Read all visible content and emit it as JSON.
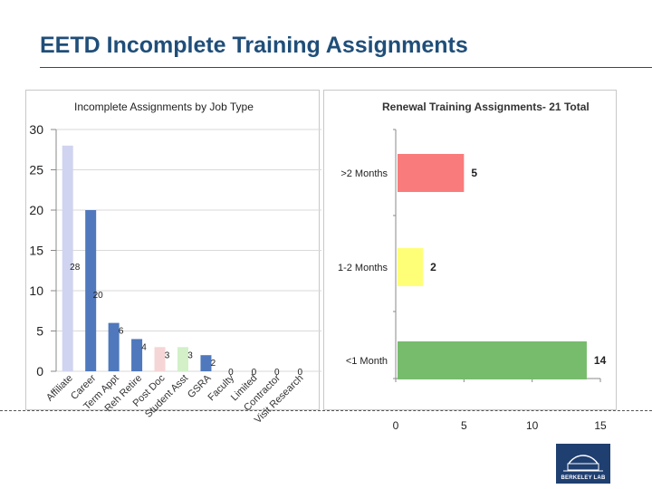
{
  "page": {
    "title": "EETD Incomplete Training Assignments"
  },
  "logo": {
    "text": "BERKELEY LAB",
    "color": "#1f3f70"
  },
  "chart_data": [
    {
      "type": "bar",
      "title": "Incomplete Assignments by Job Type",
      "ylim": [
        0,
        30
      ],
      "yticks": [
        0,
        5,
        10,
        15,
        20,
        25,
        30
      ],
      "grid": true,
      "legend": "none",
      "categories": [
        "Affiliate",
        "Career",
        "Term Appt",
        "Reh Retire",
        "Post Doc",
        "Student Asst",
        "GSRA",
        "Faculty",
        "Limited",
        "Contractor",
        "Visit Research"
      ],
      "values": [
        28,
        20,
        6,
        4,
        3,
        3,
        2,
        0,
        0,
        0,
        0
      ],
      "data_labels": [
        "28",
        "20",
        "6",
        "4",
        "3",
        "3",
        "2",
        "0",
        "0",
        "0",
        "0"
      ],
      "colors": [
        "#d0d4f0",
        "#4f78bd",
        "#4f78bd",
        "#4f78bd",
        "#f5d5d5",
        "#d3f0c8",
        "#4f78bd",
        "#4f78bd",
        "#4f78bd",
        "#4f78bd",
        "#4f78bd"
      ]
    },
    {
      "type": "bar",
      "orientation": "horizontal",
      "title": "Renewal Training Assignments- 21 Total",
      "xlim": [
        0,
        15
      ],
      "xticks": [
        0,
        5,
        10,
        15
      ],
      "legend": "none",
      "categories": [
        ">2 Months",
        "1-2 Months",
        "<1 Month"
      ],
      "values": [
        5,
        2,
        14
      ],
      "data_labels": [
        "5",
        "2",
        "14"
      ],
      "colors": [
        "#fa7b7b",
        "#ffff77",
        "#77bb6c"
      ]
    }
  ]
}
